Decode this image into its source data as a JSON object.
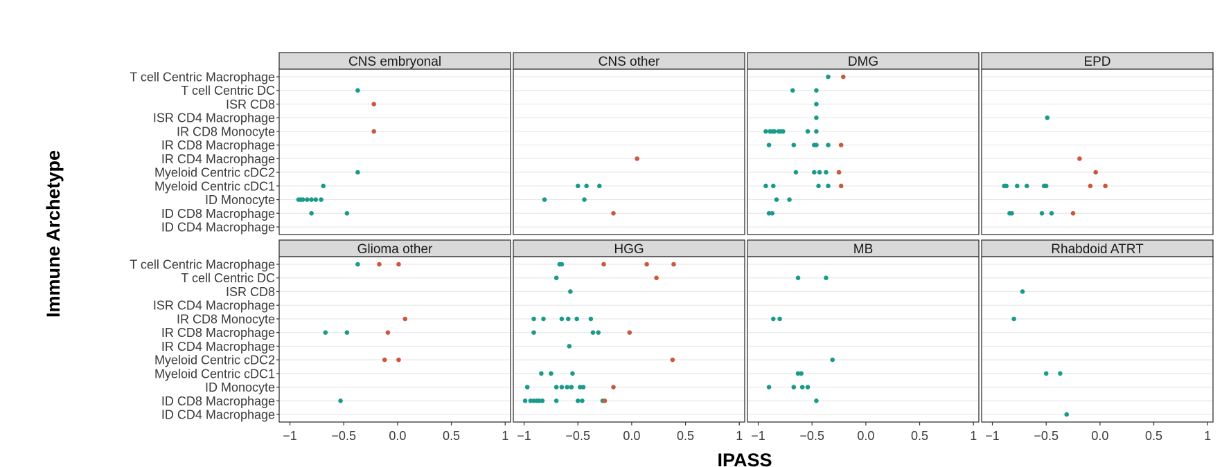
{
  "chart_data": {
    "type": "scatter",
    "xlabel": "IPASS",
    "ylabel": "Immune Archetype",
    "xlim": [
      -1.1,
      1.05
    ],
    "x_ticks": [
      -1,
      -0.5,
      0,
      0.5,
      1
    ],
    "x_tick_labels": [
      "−1",
      "−0.5",
      "0.0",
      "0.5",
      "1"
    ],
    "categories": [
      "T cell Centric Macrophage",
      "T cell Centric DC",
      "ISR CD8",
      "ISR CD4 Macrophage",
      "IR CD8 Monocyte",
      "IR CD8 Macrophage",
      "IR CD4 Macrophage",
      "Myeloid Centric cDC2",
      "Myeloid Centric cDC1",
      "ID Monocyte",
      "ID CD8 Macrophage",
      "ID CD4 Macrophage"
    ],
    "colors": {
      "negative": "#1a9a8a",
      "positive": "#c9583c"
    },
    "grid": true,
    "panels": [
      {
        "name": "CNS embryonal",
        "points": [
          [
            "T cell Centric DC",
            -0.37
          ],
          [
            "ISR CD8",
            -0.22
          ],
          [
            "IR CD8 Monocyte",
            -0.22
          ],
          [
            "Myeloid Centric cDC2",
            -0.37
          ],
          [
            "Myeloid Centric cDC1",
            -0.69
          ],
          [
            "ID Monocyte",
            -0.92
          ],
          [
            "ID Monocyte",
            -0.9
          ],
          [
            "ID Monocyte",
            -0.88
          ],
          [
            "ID Monocyte",
            -0.84
          ],
          [
            "ID Monocyte",
            -0.8
          ],
          [
            "ID Monocyte",
            -0.76
          ],
          [
            "ID Monocyte",
            -0.71
          ],
          [
            "ID CD8 Macrophage",
            -0.8
          ],
          [
            "ID CD8 Macrophage",
            -0.47
          ]
        ]
      },
      {
        "name": "CNS other",
        "points": [
          [
            "IR CD4 Macrophage",
            0.05
          ],
          [
            "Myeloid Centric cDC1",
            -0.5
          ],
          [
            "Myeloid Centric cDC1",
            -0.42
          ],
          [
            "Myeloid Centric cDC1",
            -0.3
          ],
          [
            "ID Monocyte",
            -0.81
          ],
          [
            "ID Monocyte",
            -0.44
          ],
          [
            "ID CD8 Macrophage",
            -0.17
          ]
        ]
      },
      {
        "name": "DMG",
        "points": [
          [
            "T cell Centric Macrophage",
            -0.35
          ],
          [
            "T cell Centric Macrophage",
            -0.21
          ],
          [
            "T cell Centric DC",
            -0.68
          ],
          [
            "T cell Centric DC",
            -0.46
          ],
          [
            "ISR CD8",
            -0.46
          ],
          [
            "ISR CD4 Macrophage",
            -0.46
          ],
          [
            "IR CD8 Monocyte",
            -0.93
          ],
          [
            "IR CD8 Monocyte",
            -0.89
          ],
          [
            "IR CD8 Monocyte",
            -0.87
          ],
          [
            "IR CD8 Monocyte",
            -0.85
          ],
          [
            "IR CD8 Monocyte",
            -0.81
          ],
          [
            "IR CD8 Monocyte",
            -0.79
          ],
          [
            "IR CD8 Monocyte",
            -0.77
          ],
          [
            "IR CD8 Monocyte",
            -0.54
          ],
          [
            "IR CD8 Monocyte",
            -0.46
          ],
          [
            "IR CD8 Macrophage",
            -0.9
          ],
          [
            "IR CD8 Macrophage",
            -0.67
          ],
          [
            "IR CD8 Macrophage",
            -0.48
          ],
          [
            "IR CD8 Macrophage",
            -0.46
          ],
          [
            "IR CD8 Macrophage",
            -0.35
          ],
          [
            "IR CD8 Macrophage",
            -0.23
          ],
          [
            "Myeloid Centric cDC2",
            -0.65
          ],
          [
            "Myeloid Centric cDC2",
            -0.48
          ],
          [
            "Myeloid Centric cDC2",
            -0.43
          ],
          [
            "Myeloid Centric cDC2",
            -0.37
          ],
          [
            "Myeloid Centric cDC2",
            -0.25
          ],
          [
            "Myeloid Centric cDC1",
            -0.93
          ],
          [
            "Myeloid Centric cDC1",
            -0.86
          ],
          [
            "Myeloid Centric cDC1",
            -0.44
          ],
          [
            "Myeloid Centric cDC1",
            -0.35
          ],
          [
            "Myeloid Centric cDC1",
            -0.23
          ],
          [
            "ID Monocyte",
            -0.83
          ],
          [
            "ID Monocyte",
            -0.71
          ],
          [
            "ID CD8 Macrophage",
            -0.9
          ],
          [
            "ID CD8 Macrophage",
            -0.87
          ]
        ]
      },
      {
        "name": "EPD",
        "points": [
          [
            "ISR CD4 Macrophage",
            -0.49
          ],
          [
            "IR CD4 Macrophage",
            -0.19
          ],
          [
            "Myeloid Centric cDC2",
            -0.04
          ],
          [
            "Myeloid Centric cDC1",
            -0.89
          ],
          [
            "Myeloid Centric cDC1",
            -0.87
          ],
          [
            "Myeloid Centric cDC1",
            -0.77
          ],
          [
            "Myeloid Centric cDC1",
            -0.68
          ],
          [
            "Myeloid Centric cDC1",
            -0.52
          ],
          [
            "Myeloid Centric cDC1",
            -0.5
          ],
          [
            "Myeloid Centric cDC1",
            -0.09
          ],
          [
            "Myeloid Centric cDC1",
            0.05
          ],
          [
            "ID CD8 Macrophage",
            -0.84
          ],
          [
            "ID CD8 Macrophage",
            -0.82
          ],
          [
            "ID CD8 Macrophage",
            -0.54
          ],
          [
            "ID CD8 Macrophage",
            -0.45
          ],
          [
            "ID CD8 Macrophage",
            -0.25
          ]
        ]
      },
      {
        "name": "Glioma other",
        "points": [
          [
            "T cell Centric Macrophage",
            -0.37
          ],
          [
            "T cell Centric Macrophage",
            -0.17
          ],
          [
            "T cell Centric Macrophage",
            0.01
          ],
          [
            "IR CD8 Monocyte",
            0.07
          ],
          [
            "IR CD8 Macrophage",
            -0.67
          ],
          [
            "IR CD8 Macrophage",
            -0.47
          ],
          [
            "IR CD8 Macrophage",
            -0.09
          ],
          [
            "Myeloid Centric cDC2",
            -0.12
          ],
          [
            "Myeloid Centric cDC2",
            0.01
          ],
          [
            "ID CD8 Macrophage",
            -0.53
          ]
        ]
      },
      {
        "name": "HGG",
        "points": [
          [
            "T cell Centric Macrophage",
            -0.67
          ],
          [
            "T cell Centric Macrophage",
            -0.65
          ],
          [
            "T cell Centric Macrophage",
            -0.26
          ],
          [
            "T cell Centric Macrophage",
            0.14
          ],
          [
            "T cell Centric Macrophage",
            0.39
          ],
          [
            "T cell Centric DC",
            -0.7
          ],
          [
            "T cell Centric DC",
            0.23
          ],
          [
            "ISR CD8",
            -0.57
          ],
          [
            "IR CD8 Monocyte",
            -0.91
          ],
          [
            "IR CD8 Monocyte",
            -0.82
          ],
          [
            "IR CD8 Monocyte",
            -0.65
          ],
          [
            "IR CD8 Monocyte",
            -0.59
          ],
          [
            "IR CD8 Monocyte",
            -0.51
          ],
          [
            "IR CD8 Monocyte",
            -0.38
          ],
          [
            "IR CD8 Macrophage",
            -0.91
          ],
          [
            "IR CD8 Macrophage",
            -0.36
          ],
          [
            "IR CD8 Macrophage",
            -0.31
          ],
          [
            "IR CD8 Macrophage",
            -0.02
          ],
          [
            "IR CD4 Macrophage",
            -0.58
          ],
          [
            "Myeloid Centric cDC2",
            0.38
          ],
          [
            "Myeloid Centric cDC1",
            -0.84
          ],
          [
            "Myeloid Centric cDC1",
            -0.75
          ],
          [
            "Myeloid Centric cDC1",
            -0.55
          ],
          [
            "ID Monocyte",
            -0.97
          ],
          [
            "ID Monocyte",
            -0.7
          ],
          [
            "ID Monocyte",
            -0.65
          ],
          [
            "ID Monocyte",
            -0.6
          ],
          [
            "ID Monocyte",
            -0.56
          ],
          [
            "ID Monocyte",
            -0.48
          ],
          [
            "ID Monocyte",
            -0.45
          ],
          [
            "ID Monocyte",
            -0.17
          ],
          [
            "ID CD8 Macrophage",
            -0.99
          ],
          [
            "ID CD8 Macrophage",
            -0.94
          ],
          [
            "ID CD8 Macrophage",
            -0.91
          ],
          [
            "ID CD8 Macrophage",
            -0.88
          ],
          [
            "ID CD8 Macrophage",
            -0.86
          ],
          [
            "ID CD8 Macrophage",
            -0.83
          ],
          [
            "ID CD8 Macrophage",
            -0.7
          ],
          [
            "ID CD8 Macrophage",
            -0.5
          ],
          [
            "ID CD8 Macrophage",
            -0.46
          ],
          [
            "ID CD8 Macrophage",
            -0.27
          ],
          [
            "ID CD8 Macrophage",
            -0.25
          ]
        ]
      },
      {
        "name": "MB",
        "points": [
          [
            "T cell Centric DC",
            -0.63
          ],
          [
            "T cell Centric DC",
            -0.37
          ],
          [
            "IR CD8 Monocyte",
            -0.86
          ],
          [
            "IR CD8 Monocyte",
            -0.8
          ],
          [
            "Myeloid Centric cDC2",
            -0.31
          ],
          [
            "Myeloid Centric cDC1",
            -0.63
          ],
          [
            "Myeloid Centric cDC1",
            -0.6
          ],
          [
            "ID Monocyte",
            -0.9
          ],
          [
            "ID Monocyte",
            -0.67
          ],
          [
            "ID Monocyte",
            -0.59
          ],
          [
            "ID Monocyte",
            -0.54
          ],
          [
            "ID CD8 Macrophage",
            -0.46
          ]
        ]
      },
      {
        "name": "Rhabdoid ATRT",
        "points": [
          [
            "ISR CD8",
            -0.72
          ],
          [
            "IR CD8 Monocyte",
            -0.8
          ],
          [
            "Myeloid Centric cDC1",
            -0.5
          ],
          [
            "Myeloid Centric cDC1",
            -0.37
          ],
          [
            "ID CD4 Macrophage",
            -0.31
          ]
        ]
      }
    ]
  }
}
